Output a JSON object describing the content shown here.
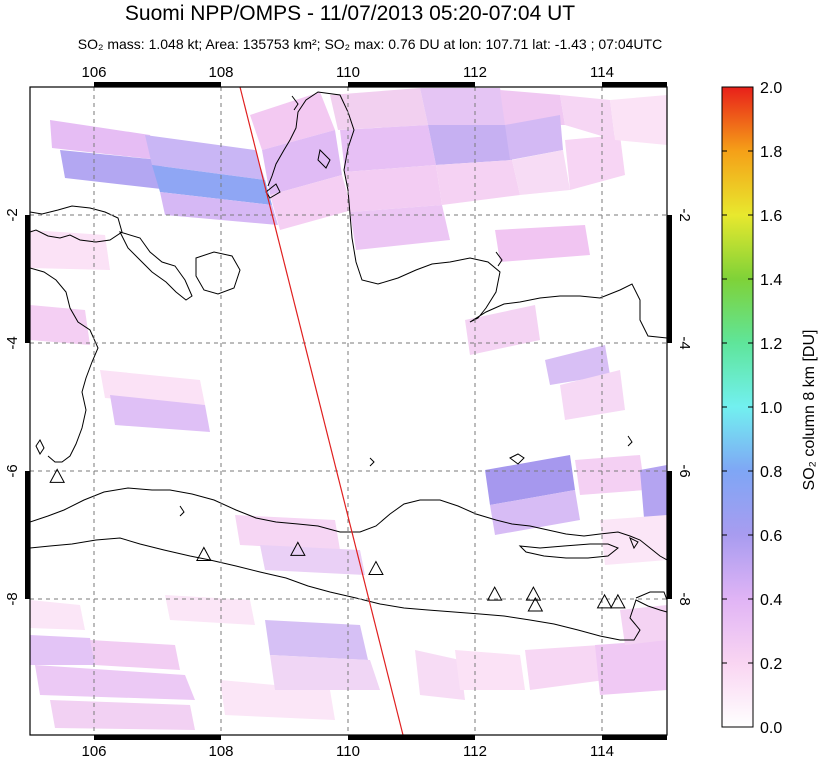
{
  "header": {
    "title": "Suomi NPP/OMPS - 11/07/2013 05:20-07:04 UT",
    "subtitle": "SO₂ mass: 1.048 kt; Area: 135753 km²; SO₂ max: 0.76 DU at lon: 107.71 lat: -1.43 ; 07:04UTC"
  },
  "map": {
    "lon_ticks": [
      "106",
      "108",
      "110",
      "112",
      "114"
    ],
    "lat_ticks": [
      "-2",
      "-4",
      "-6",
      "-8"
    ],
    "extent": {
      "lon_min": 105,
      "lon_max": 115,
      "lat_min": -10,
      "lat_max": -0.1
    }
  },
  "colorbar": {
    "label": "SO₂ column 8 km [DU]",
    "ticks": [
      "2.0",
      "1.8",
      "1.6",
      "1.4",
      "1.2",
      "1.0",
      "0.8",
      "0.6",
      "0.4",
      "0.2",
      "0.0"
    ],
    "range": [
      0,
      2
    ],
    "colors": [
      "#ffffff",
      "#f9d5f2",
      "#e0b4f5",
      "#a89cf0",
      "#6fc9f2",
      "#72f0f0",
      "#5fe59a",
      "#7fd238",
      "#e8e82e",
      "#f5a018",
      "#e8201a"
    ]
  },
  "volcanoes": [
    {
      "lon": 105.42,
      "lat": -6.1
    },
    {
      "lon": 107.73,
      "lat": -7.32
    },
    {
      "lon": 109.21,
      "lat": -7.24
    },
    {
      "lon": 110.44,
      "lat": -7.54
    },
    {
      "lon": 112.31,
      "lat": -7.94
    },
    {
      "lon": 112.92,
      "lat": -7.94
    },
    {
      "lon": 112.95,
      "lat": -8.11
    },
    {
      "lon": 114.04,
      "lat": -8.06
    },
    {
      "lon": 114.25,
      "lat": -8.06
    }
  ],
  "orbit_line_color": "#e02020"
}
